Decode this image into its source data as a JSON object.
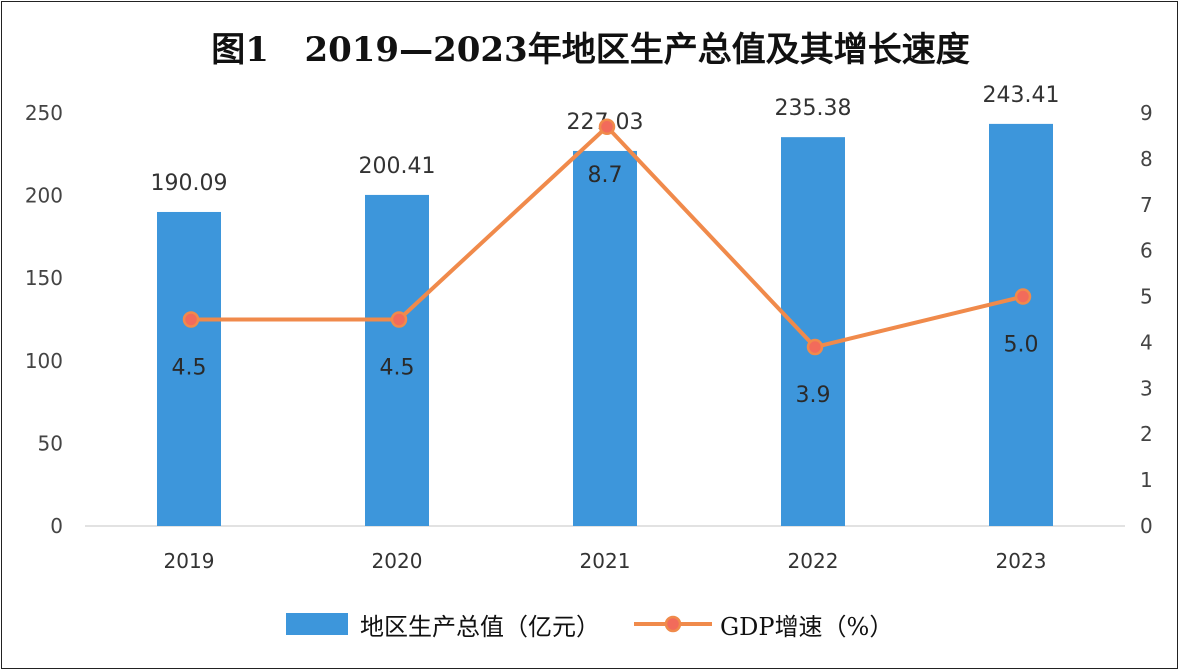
{
  "title": "图1   2019—2023年地区生产总值及其增长速度",
  "colors": {
    "bar": "#3d96db",
    "line": "#f08a4b",
    "marker_fill": "#f26b5b",
    "grid": "#d9d9d9"
  },
  "chart_data": {
    "type": "bar",
    "title": "图1   2019—2023年地区生产总值及其增长速度",
    "categories": [
      "2019",
      "2020",
      "2021",
      "2022",
      "2023"
    ],
    "series": [
      {
        "name": "地区生产总值（亿元）",
        "type": "bar",
        "axis": "left",
        "values": [
          190.09,
          200.41,
          227.03,
          235.38,
          243.41
        ],
        "labels": [
          "190.09",
          "200.41",
          "227.03",
          "235.38",
          "243.41"
        ]
      },
      {
        "name": "GDP增速（%）",
        "type": "line",
        "axis": "right",
        "values": [
          4.5,
          4.5,
          8.7,
          3.9,
          5.0
        ],
        "labels": [
          "4.5",
          "4.5",
          "8.7",
          "3.9",
          "5.0"
        ]
      }
    ],
    "y_left": {
      "min": 0,
      "max": 250,
      "ticks": [
        "0",
        "50",
        "100",
        "150",
        "200",
        "250"
      ]
    },
    "y_right": {
      "min": 0,
      "max": 9,
      "ticks": [
        "0",
        "1",
        "2",
        "3",
        "4",
        "5",
        "6",
        "7",
        "8",
        "9"
      ]
    },
    "grid": false,
    "legend": "bottom"
  }
}
